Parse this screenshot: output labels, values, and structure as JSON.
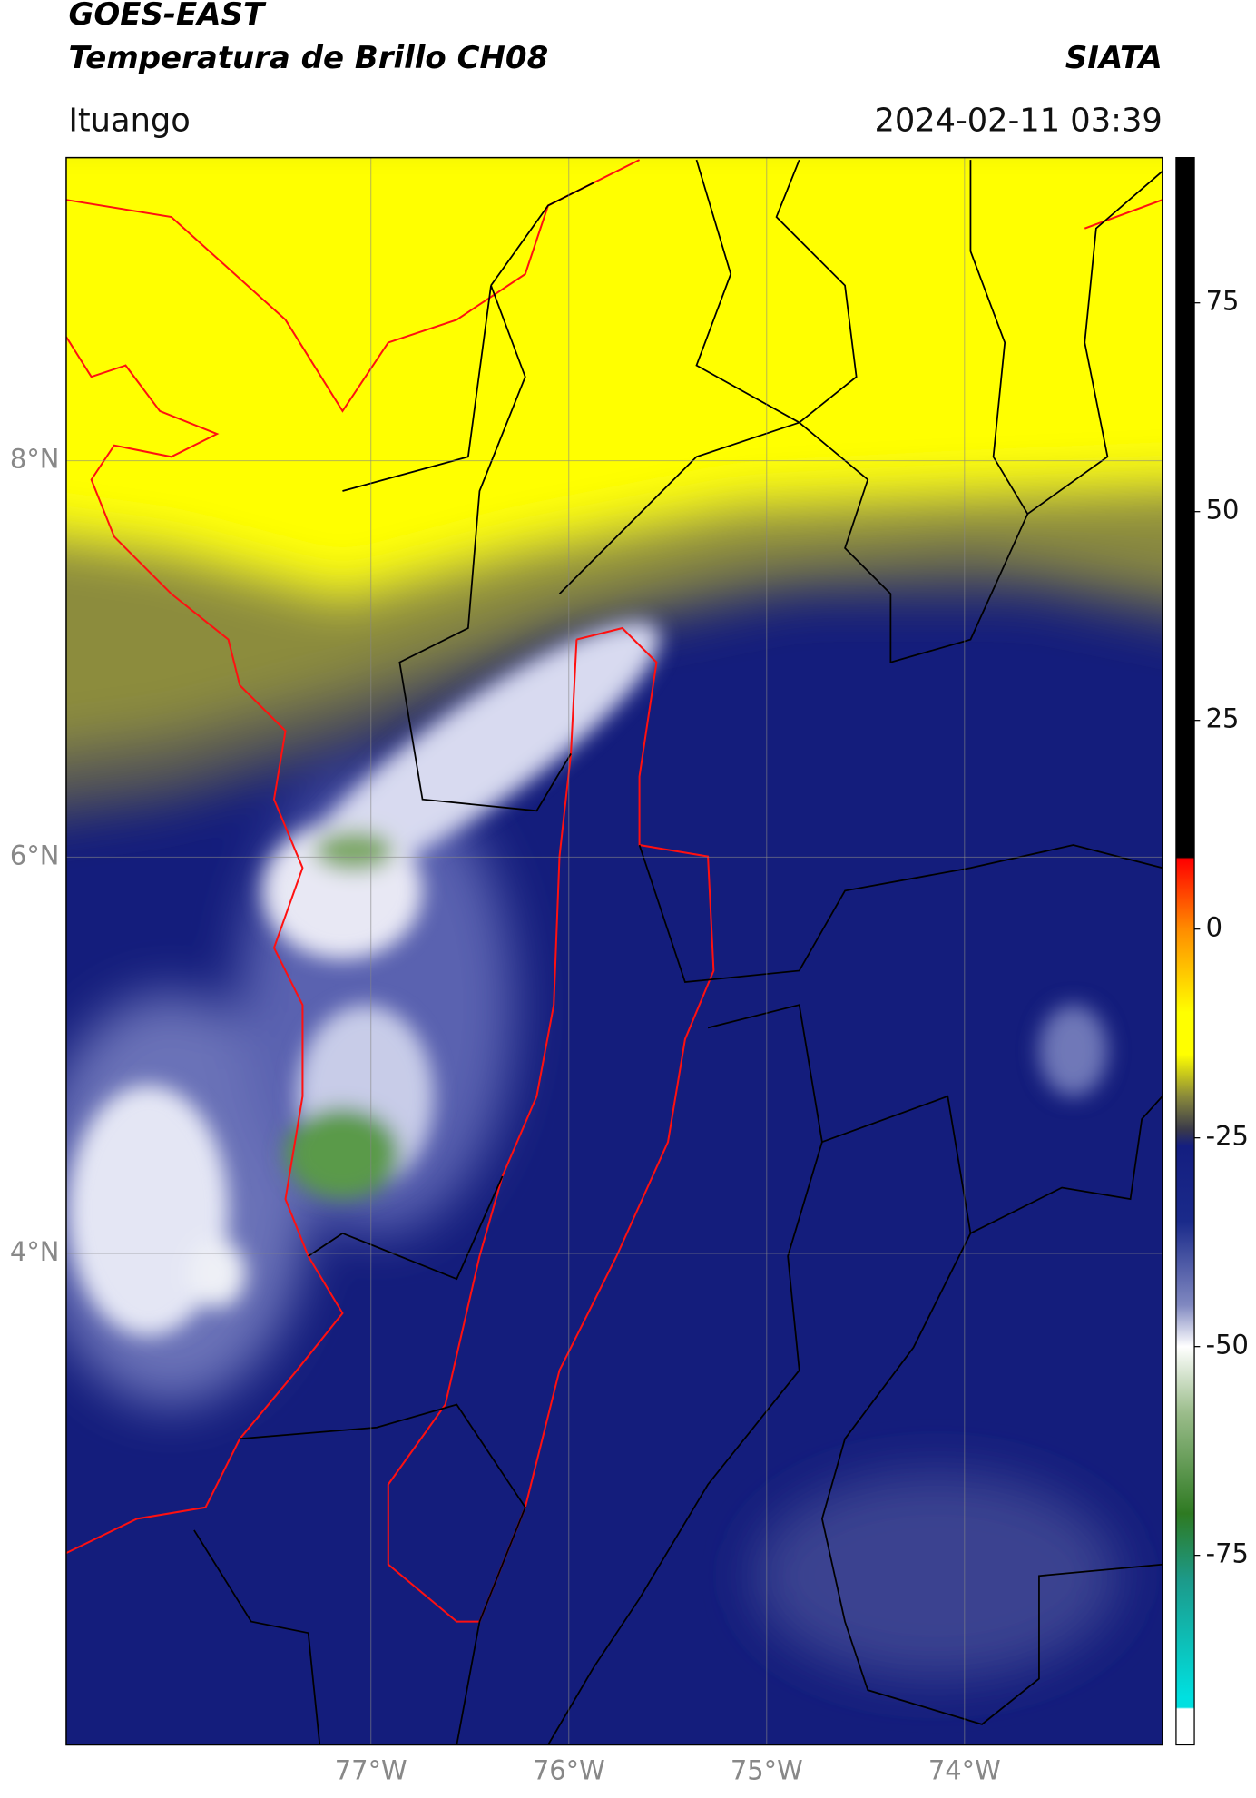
{
  "header": {
    "title": "GOES-EAST",
    "subtitle": "Temperatura de Brillo CH08",
    "brand": "SIATA",
    "location": "Ituango",
    "datetime": "2024-02-11 03:39"
  },
  "map": {
    "xlim": [
      -78.54,
      -73.0
    ],
    "ylim": [
      1.52,
      9.53
    ],
    "xticks": [
      {
        "value": -77,
        "label": "77°W"
      },
      {
        "value": -76,
        "label": "76°W"
      },
      {
        "value": -75,
        "label": "75°W"
      },
      {
        "value": -74,
        "label": "74°W"
      }
    ],
    "yticks": [
      {
        "value": 8,
        "label": "8°N"
      },
      {
        "value": 6,
        "label": "6°N"
      },
      {
        "value": 4,
        "label": "4°N"
      }
    ]
  },
  "colorbar": {
    "lim": [
      -97.7,
      92.4
    ],
    "ticks": [
      75,
      50,
      25,
      0,
      -25,
      -50,
      -75
    ],
    "stops": [
      {
        "value": 92.4,
        "color": "#000000"
      },
      {
        "value": 8.6,
        "color": "#000000"
      },
      {
        "value": 8.4,
        "color": "#ff0000"
      },
      {
        "value": 0,
        "color": "#ff8c00"
      },
      {
        "value": -10,
        "color": "#ffff00"
      },
      {
        "value": -15,
        "color": "#ffff00"
      },
      {
        "value": -20,
        "color": "#8a8a3a"
      },
      {
        "value": -24,
        "color": "#3a3a4a"
      },
      {
        "value": -26,
        "color": "#141e80"
      },
      {
        "value": -35,
        "color": "#1a2a8a"
      },
      {
        "value": -45,
        "color": "#8088c0"
      },
      {
        "value": -50,
        "color": "#ffffff"
      },
      {
        "value": -58,
        "color": "#9abc8a"
      },
      {
        "value": -70,
        "color": "#2e7a22"
      },
      {
        "value": -78,
        "color": "#1c9a8a"
      },
      {
        "value": -92,
        "color": "#00e0e0"
      },
      {
        "value": -93.2,
        "color": "#00e0e0"
      },
      {
        "value": -93.4,
        "color": "#ffffff"
      },
      {
        "value": -97.7,
        "color": "#ffffff"
      }
    ]
  }
}
